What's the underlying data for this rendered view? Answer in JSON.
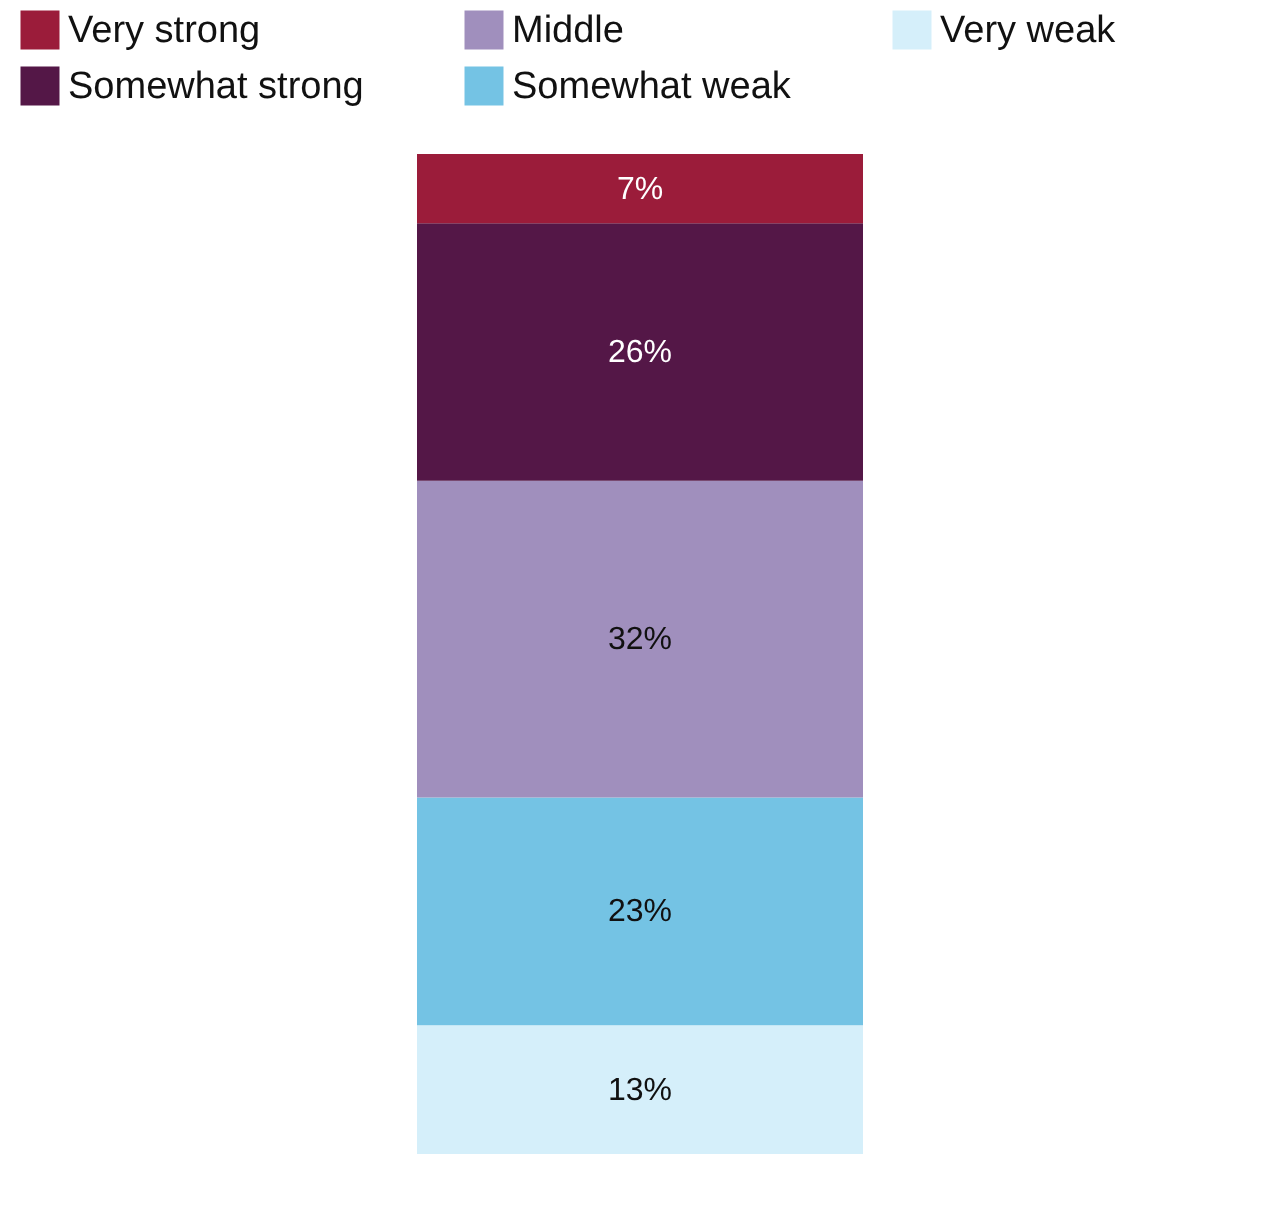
{
  "chart_data": {
    "type": "bar",
    "stacked": true,
    "categories": [
      null
    ],
    "series": [
      {
        "name": "Very weak",
        "color": "#d5effa",
        "values": [
          13
        ],
        "value_labels": [
          "13%"
        ]
      },
      {
        "name": "Somewhat weak",
        "color": "#74c3e4",
        "values": [
          23
        ],
        "value_labels": [
          "23%"
        ]
      },
      {
        "name": "Middle",
        "color": "#a08fbd",
        "values": [
          32
        ],
        "value_labels": [
          "32%"
        ]
      },
      {
        "name": "Somewhat strong",
        "color": "#541747",
        "values": [
          26
        ],
        "value_labels": [
          "26%"
        ]
      },
      {
        "name": "Very strong",
        "color": "#9b1c3a",
        "values": [
          7
        ],
        "value_labels": [
          "7%"
        ]
      }
    ],
    "legend": "top"
  }
}
